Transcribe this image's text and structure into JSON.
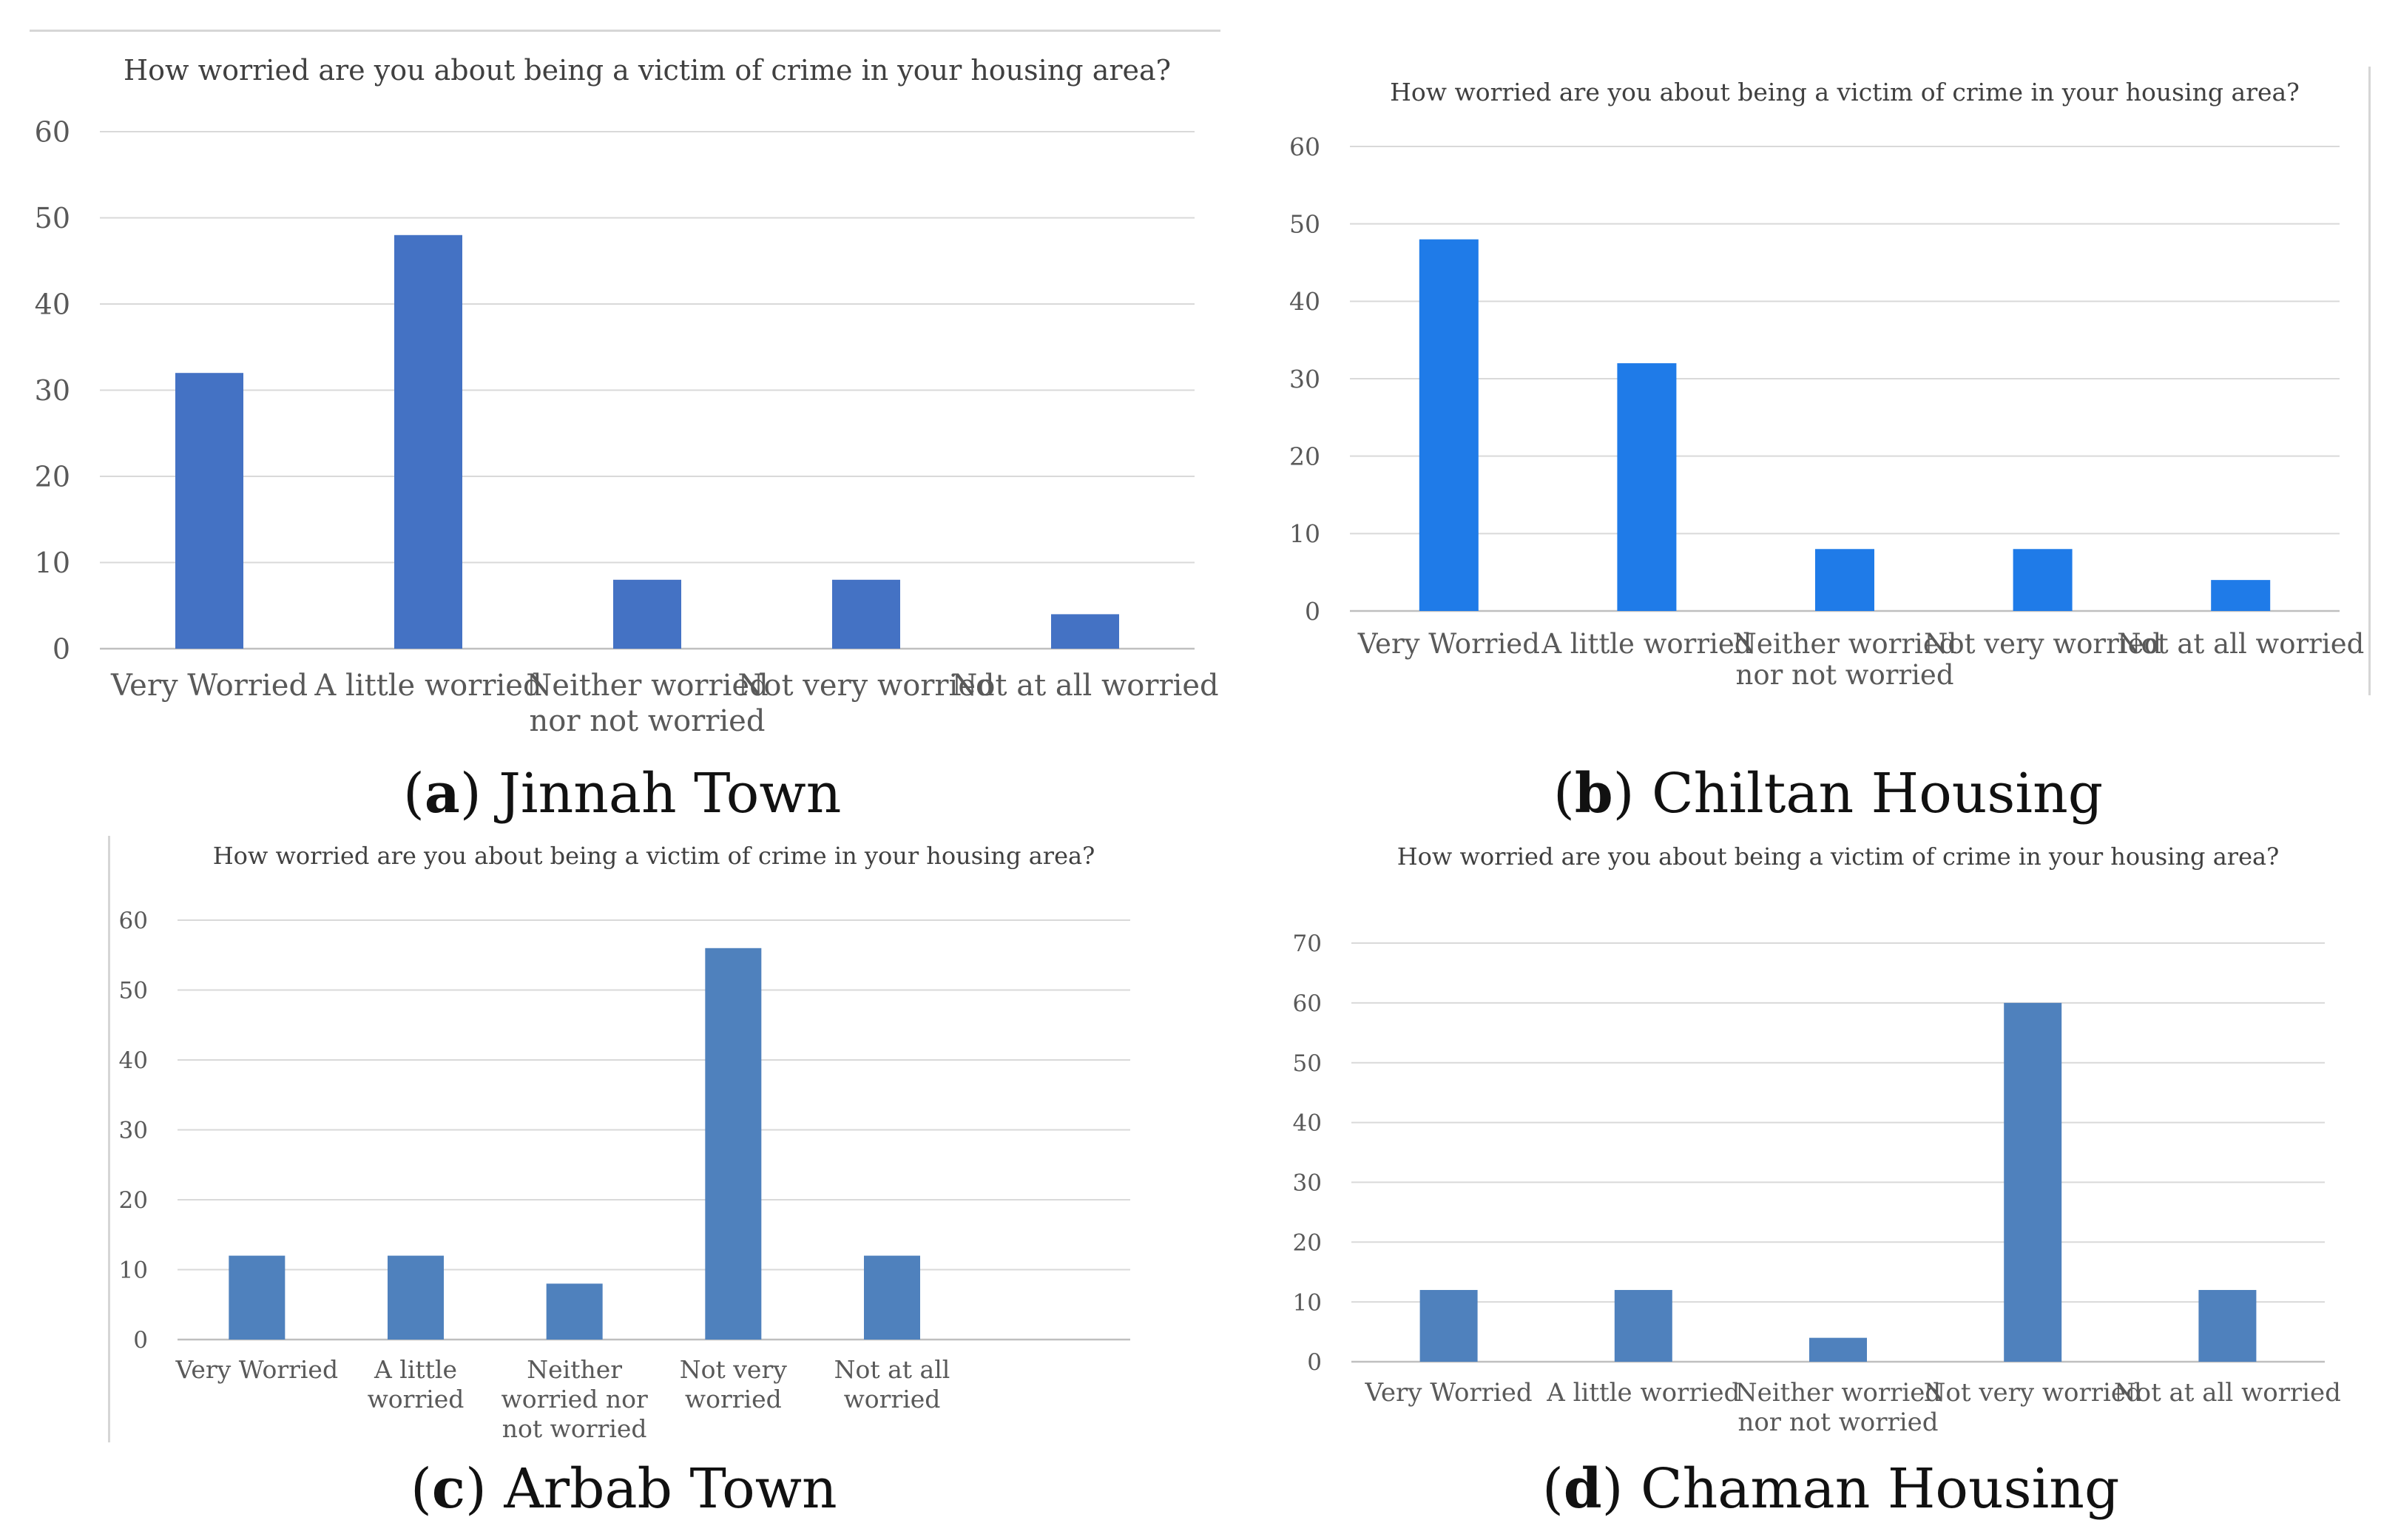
{
  "chart_data": [
    {
      "type": "bar",
      "title": "How worried are you about being a victim of crime in your housing area?",
      "categories": [
        "Very Worried",
        "A little worried",
        "Neither worried nor not worried",
        "Not very worried",
        "Not at all worried"
      ],
      "values": [
        32,
        48,
        8,
        8,
        4
      ],
      "ylim": [
        0,
        60
      ],
      "yticks": [
        0,
        10,
        20,
        30,
        40,
        50,
        60
      ],
      "grid": true,
      "color": "#4472c4",
      "caption_letter": "a",
      "caption_text": "Jinnah Town"
    },
    {
      "type": "bar",
      "title": "How worried are you about being a victim of crime in your housing area?",
      "categories": [
        "Very Worried",
        "A little worried",
        "Neither worried nor not worried",
        "Not very worried",
        "Not at all worried"
      ],
      "values": [
        48,
        32,
        8,
        8,
        4
      ],
      "ylim": [
        0,
        60
      ],
      "yticks": [
        0,
        10,
        20,
        30,
        40,
        50,
        60
      ],
      "grid": true,
      "color": "#1f7be8",
      "caption_letter": "b",
      "caption_text": "Chiltan Housing"
    },
    {
      "type": "bar",
      "title": "How worried are you about being a victim of crime in your housing area?",
      "categories": [
        "Very Worried",
        "A little worried",
        "Neither worried nor not worried",
        "Not very worried",
        "Not at all worried"
      ],
      "values": [
        12,
        12,
        8,
        56,
        12
      ],
      "ylim": [
        0,
        60
      ],
      "yticks": [
        0,
        10,
        20,
        30,
        40,
        50,
        60
      ],
      "grid": true,
      "color": "#4f81bd",
      "caption_letter": "c",
      "caption_text": "Arbab Town"
    },
    {
      "type": "bar",
      "title": "How worried are you about being a victim of crime in your housing area?",
      "categories": [
        "Very Worried",
        "A little worried",
        "Neither worried nor not worried",
        "Not very worried",
        "Not at all worried"
      ],
      "values": [
        12,
        12,
        4,
        60,
        12
      ],
      "ylim": [
        0,
        70
      ],
      "yticks": [
        0,
        10,
        20,
        30,
        40,
        50,
        60,
        70
      ],
      "grid": true,
      "color": "#4f81bd",
      "caption_letter": "d",
      "caption_text": "Chaman Housing"
    }
  ]
}
